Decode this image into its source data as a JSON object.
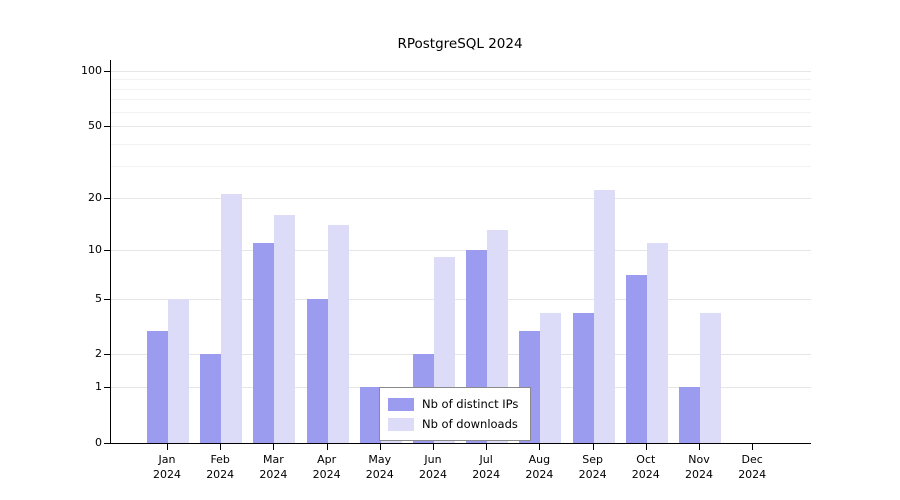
{
  "title": "RPostgreSQL 2024",
  "chart_data": {
    "type": "bar",
    "title": "RPostgreSQL 2024",
    "yscale": "log1p",
    "ylim": [
      0,
      100
    ],
    "yticks": [
      0,
      1,
      2,
      5,
      10,
      20,
      50,
      100
    ],
    "minor_yticks": [
      30,
      40,
      60,
      70,
      80,
      90
    ],
    "grid": true,
    "months": [
      "Jan",
      "Feb",
      "Mar",
      "Apr",
      "May",
      "Jun",
      "Jul",
      "Aug",
      "Sep",
      "Oct",
      "Nov",
      "Dec"
    ],
    "year": "2024",
    "categories": [
      "Jan 2024",
      "Feb 2024",
      "Mar 2024",
      "Apr 2024",
      "May 2024",
      "Jun 2024",
      "Jul 2024",
      "Aug 2024",
      "Sep 2024",
      "Oct 2024",
      "Nov 2024",
      "Dec 2024"
    ],
    "series": [
      {
        "name": "Nb of distinct IPs",
        "color": "#9b9bef",
        "values": [
          3,
          2,
          11,
          5,
          1,
          2,
          10,
          3,
          4,
          7,
          1,
          0
        ]
      },
      {
        "name": "Nb of downloads",
        "color": "#dcdcf9",
        "values": [
          5,
          21,
          16,
          14,
          1,
          9,
          13,
          4,
          22,
          11,
          4,
          0
        ]
      }
    ],
    "legend": {
      "position": "bottom-center",
      "entries": [
        "Nb of distinct IPs",
        "Nb of downloads"
      ]
    },
    "colors": {
      "grid_major": "#e6e6e6",
      "grid_minor": "#f2f2f2",
      "axis": "#000000",
      "background": "#ffffff"
    }
  }
}
